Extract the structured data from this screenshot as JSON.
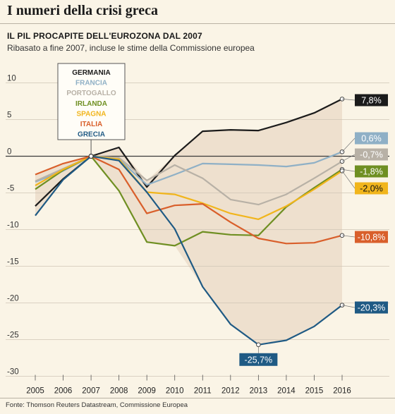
{
  "header": {
    "title": "I numeri della crisi greca",
    "subtitle": "IL PIL PROCAPITE DELL'EUROZONA DAL 2007",
    "note": "Ribasato a fine 2007, incluse le stime della Commissione europea"
  },
  "source": "Fonte: Thomson Reuters Datastream, Commissione Europea",
  "chart_data": {
    "type": "line",
    "title": "IL PIL PROCAPITE DELL'EUROZONA DAL 2007",
    "subtitle": "Ribasato a fine 2007, incluse le stime della Commissione europea",
    "xlabel": "",
    "ylabel": "",
    "x": [
      "2005",
      "2006",
      "2007",
      "2008",
      "2009",
      "2010",
      "2011",
      "2012",
      "2013",
      "2014",
      "2015",
      "2016"
    ],
    "ylim": [
      -30,
      10
    ],
    "yticks": [
      10,
      5,
      0,
      -5,
      -10,
      -15,
      -20,
      -25,
      -30
    ],
    "ytick_labels": [
      "10",
      "5",
      "0",
      "-5",
      "-10",
      "-15",
      "-20",
      "-25",
      "-30"
    ],
    "grid": true,
    "legend_position": "top-left",
    "series": [
      {
        "name": "GERMANIA",
        "color": "#1b1b1b",
        "values": [
          -6.8,
          -3.1,
          0,
          1.2,
          -4.2,
          0.1,
          3.4,
          3.6,
          3.5,
          4.6,
          5.9,
          7.8
        ],
        "end_label": "7,8%"
      },
      {
        "name": "FRANCIA",
        "color": "#8fb0c6",
        "values": [
          -3.5,
          -2.0,
          0,
          -0.4,
          -3.9,
          -2.5,
          -1.0,
          -1.1,
          -1.2,
          -1.4,
          -0.9,
          0.6
        ],
        "end_label": "0,6%"
      },
      {
        "name": "PORTOGALLO",
        "color": "#b8b1a6",
        "values": [
          -3.4,
          -1.7,
          0,
          -0.2,
          -3.3,
          -1.2,
          -3.0,
          -5.9,
          -6.6,
          -5.2,
          -3.0,
          -0.7
        ],
        "end_label": "-0,7%"
      },
      {
        "name": "IRLANDA",
        "color": "#6f8f22",
        "values": [
          -4.5,
          -1.9,
          0,
          -4.7,
          -11.7,
          -12.2,
          -10.3,
          -10.7,
          -10.8,
          -6.9,
          -4.3,
          -1.8
        ],
        "end_label": "-1,8%"
      },
      {
        "name": "SPAGNA",
        "color": "#f1b51c",
        "values": [
          -4.0,
          -1.8,
          0,
          -0.4,
          -4.9,
          -5.2,
          -6.4,
          -7.8,
          -8.6,
          -6.8,
          -4.5,
          -2.0
        ],
        "end_label": "-2,0%"
      },
      {
        "name": "ITALIA",
        "color": "#d95f2b",
        "values": [
          -2.5,
          -1.0,
          0,
          -1.8,
          -7.8,
          -6.7,
          -6.5,
          -9.0,
          -11.2,
          -11.9,
          -11.8,
          -10.8
        ],
        "end_label": "-10,8%"
      },
      {
        "name": "GRECIA",
        "color": "#1f5a84",
        "values": [
          -8.1,
          -3.2,
          0,
          -0.6,
          -4.9,
          -9.9,
          -17.8,
          -22.9,
          -25.7,
          -25.1,
          -23.2,
          -20.3
        ],
        "end_label": "-20,3%",
        "min_label": "-25,7%"
      }
    ]
  }
}
